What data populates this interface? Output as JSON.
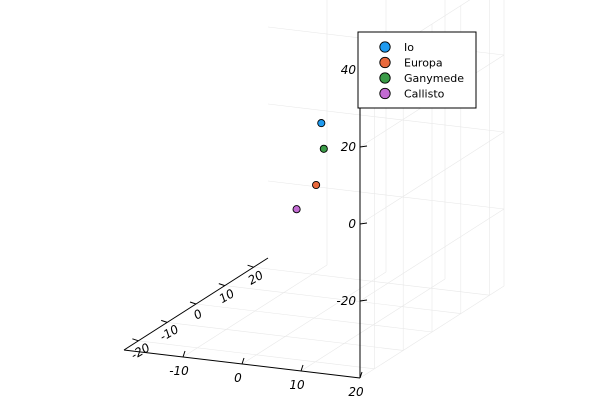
{
  "chart_data": {
    "type": "scatter",
    "projection": "3d",
    "title": "",
    "xlabel": "",
    "ylabel": "",
    "zlabel": "",
    "x_ticks": [
      -10,
      0,
      10,
      20
    ],
    "y_ticks": [
      -20,
      -10,
      0,
      10,
      20
    ],
    "z_ticks": [
      -20,
      0,
      20,
      40
    ],
    "x_range": [
      -20,
      20
    ],
    "y_range": [
      -25,
      25
    ],
    "z_range": [
      -40,
      40
    ],
    "grid": true,
    "legend_position": "top-right",
    "series": [
      {
        "name": "Io",
        "color": "#1f9bf0",
        "x": 0.5,
        "y": 1.5,
        "z": 10
      },
      {
        "name": "Europa",
        "color": "#e8693c",
        "x": 5.0,
        "y": -9.5,
        "z": 0
      },
      {
        "name": "Ganymede",
        "color": "#3a9b47",
        "x": -2.0,
        "y": 7.5,
        "z": 0
      },
      {
        "name": "Callisto",
        "color": "#c26bd2",
        "x": -1.0,
        "y": -4.0,
        "z": -10
      }
    ]
  }
}
